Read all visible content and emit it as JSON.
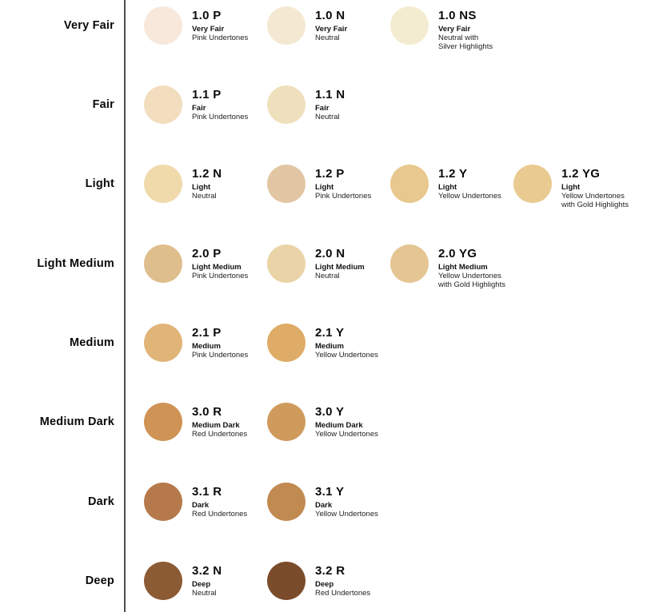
{
  "chart": {
    "background": "#ffffff",
    "divider_color": "#4d4d4d"
  },
  "rows": [
    {
      "label": "Very Fair",
      "swatches": [
        {
          "code": "1.0 P",
          "name": "Very Fair",
          "undertone_lines": [
            "Pink Undertones"
          ],
          "color": "#F7E8DB"
        },
        {
          "code": "1.0 N",
          "name": "Very Fair",
          "undertone_lines": [
            "Neutral"
          ],
          "color": "#F5E8D3"
        },
        {
          "code": "1.0 NS",
          "name": "Very Fair",
          "undertone_lines": [
            "Neutral with",
            "Silver Highlights"
          ],
          "color": "#F3ECD1"
        }
      ]
    },
    {
      "label": "Fair",
      "swatches": [
        {
          "code": "1.1 P",
          "name": "Fair",
          "undertone_lines": [
            "Pink Undertones"
          ],
          "color": "#F2DDBE"
        },
        {
          "code": "1.1 N",
          "name": "Fair",
          "undertone_lines": [
            "Neutral"
          ],
          "color": "#EFE0BD"
        }
      ]
    },
    {
      "label": "Light",
      "swatches": [
        {
          "code": "1.2 N",
          "name": "Light",
          "undertone_lines": [
            "Neutral"
          ],
          "color": "#F0D9AB"
        },
        {
          "code": "1.2 P",
          "name": "Light",
          "undertone_lines": [
            "Pink Undertones"
          ],
          "color": "#E2C6A4"
        },
        {
          "code": "1.2 Y",
          "name": "Light",
          "undertone_lines": [
            "Yellow Undertones"
          ],
          "color": "#E8C88E"
        },
        {
          "code": "1.2 YG",
          "name": "Light",
          "undertone_lines": [
            "Yellow Undertones",
            "with Gold Highlights"
          ],
          "color": "#E9CA90"
        }
      ]
    },
    {
      "label": "Light Medium",
      "swatches": [
        {
          "code": "2.0 P",
          "name": "Light Medium",
          "undertone_lines": [
            "Pink Undertones"
          ],
          "color": "#DFBE8D"
        },
        {
          "code": "2.0 N",
          "name": "Light Medium",
          "undertone_lines": [
            "Neutral"
          ],
          "color": "#EAD3A6"
        },
        {
          "code": "2.0 YG",
          "name": "Light Medium",
          "undertone_lines": [
            "Yellow Undertones",
            "with Gold Highlights"
          ],
          "color": "#E3C693"
        }
      ]
    },
    {
      "label": "Medium",
      "swatches": [
        {
          "code": "2.1 P",
          "name": "Medium",
          "undertone_lines": [
            "Pink Undertones"
          ],
          "color": "#E1B478"
        },
        {
          "code": "2.1 Y",
          "name": "Medium",
          "undertone_lines": [
            "Yellow Undertones"
          ],
          "color": "#DEAC67"
        }
      ]
    },
    {
      "label": "Medium Dark",
      "swatches": [
        {
          "code": "3.0 R",
          "name": "Medium Dark",
          "undertone_lines": [
            "Red Undertones"
          ],
          "color": "#CE9355"
        },
        {
          "code": "3.0 Y",
          "name": "Medium Dark",
          "undertone_lines": [
            "Yellow Undertones"
          ],
          "color": "#CF9B5D"
        }
      ]
    },
    {
      "label": "Dark",
      "swatches": [
        {
          "code": "3.1 R",
          "name": "Dark",
          "undertone_lines": [
            "Red Undertones"
          ],
          "color": "#B5794B"
        },
        {
          "code": "3.1 Y",
          "name": "Dark",
          "undertone_lines": [
            "Yellow Undertones"
          ],
          "color": "#C18A51"
        }
      ]
    },
    {
      "label": "Deep",
      "swatches": [
        {
          "code": "3.2 N",
          "name": "Deep",
          "undertone_lines": [
            "Neutral"
          ],
          "color": "#8B5B34"
        },
        {
          "code": "3.2 R",
          "name": "Deep",
          "undertone_lines": [
            "Red Undertones"
          ],
          "color": "#7B4C2B"
        }
      ]
    }
  ]
}
